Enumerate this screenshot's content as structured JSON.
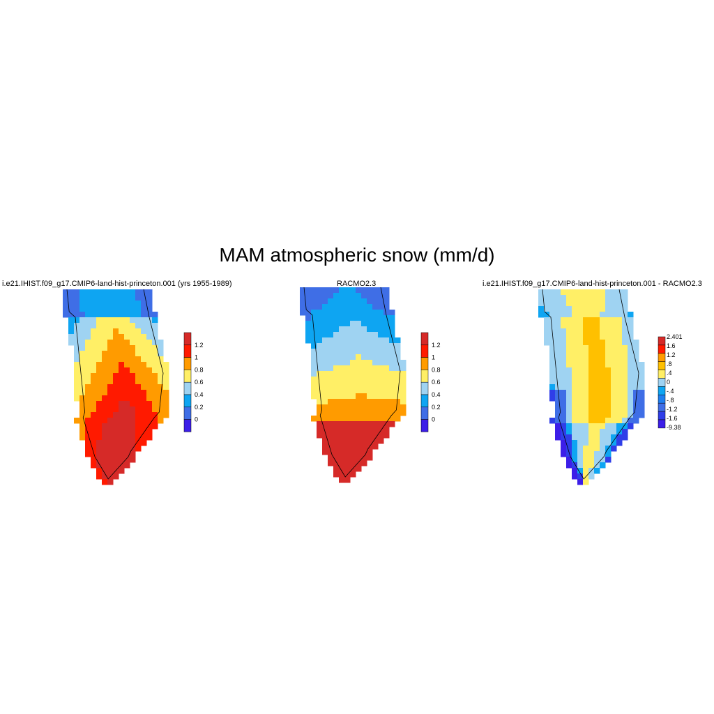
{
  "title": "MAM atmospheric snow (mm/d)",
  "panels": [
    {
      "title": "i.e21.IHIST.f09_g17.CMIP6-land-hist-princeton.001 (yrs 1955-1989)",
      "colorbar": {
        "labels": [
          "1.2",
          "1",
          "0.8",
          "0.6",
          "0.4",
          "0.2",
          "0"
        ],
        "colors": [
          "#d62a28",
          "#ff1a00",
          "#ff9b00",
          "#ffef66",
          "#9fd3f2",
          "#0ea5f2",
          "#3f6ee6",
          "#3c1ee8"
        ]
      }
    },
    {
      "title": "RACMO2.3",
      "colorbar": {
        "labels": [
          "1.2",
          "1",
          "0.8",
          "0.6",
          "0.4",
          "0.2",
          "0"
        ],
        "colors": [
          "#d62a28",
          "#ff1a00",
          "#ff9b00",
          "#ffef66",
          "#9fd3f2",
          "#0ea5f2",
          "#3f6ee6",
          "#3c1ee8"
        ]
      }
    },
    {
      "title": "i.e21.IHIST.f09_g17.CMIP6-land-hist-princeton.001 - RACMO2.3",
      "colorbar": {
        "labels": [
          "2.401",
          "1.6",
          "1.2",
          ".8",
          ".4",
          "0",
          "-.4",
          "-.8",
          "-1.2",
          "-1.6",
          "-9.38"
        ],
        "colors": [
          "#d62a28",
          "#ff1a00",
          "#ff9b00",
          "#ffc000",
          "#ffef66",
          "#9fd3f2",
          "#0ea5f2",
          "#1e7ff0",
          "#3f6ee6",
          "#2f3ee8",
          "#3c1ee8"
        ]
      }
    }
  ]
}
